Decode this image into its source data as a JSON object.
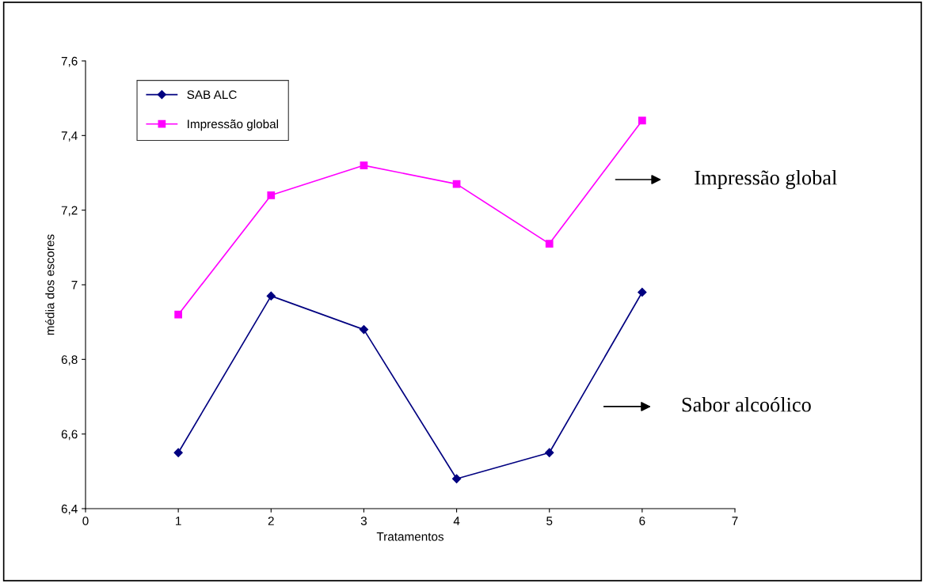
{
  "chart_data": {
    "type": "line",
    "xlabel": "Tratamentos",
    "ylabel": "média dos escores",
    "x": [
      1,
      2,
      3,
      4,
      5,
      6
    ],
    "series": [
      {
        "name": "SAB ALC",
        "color": "#000080",
        "marker": "diamond",
        "values": [
          6.55,
          6.97,
          6.88,
          6.48,
          6.55,
          6.98
        ]
      },
      {
        "name": "Impressão global",
        "color": "#ff00ff",
        "marker": "square",
        "values": [
          6.92,
          7.24,
          7.32,
          7.27,
          7.11,
          7.44
        ]
      }
    ],
    "xlim": [
      0,
      7
    ],
    "xticks": [
      0,
      1,
      2,
      3,
      4,
      5,
      6,
      7
    ],
    "ylim": [
      6.4,
      7.6
    ],
    "yticks": [
      {
        "value": 6.4,
        "label": "6,4"
      },
      {
        "value": 6.6,
        "label": "6,6"
      },
      {
        "value": 6.8,
        "label": "6,8"
      },
      {
        "value": 7,
        "label": "7"
      },
      {
        "value": 7.2,
        "label": "7,2"
      },
      {
        "value": 7.4,
        "label": "7,4"
      },
      {
        "value": 7.6,
        "label": "7,6"
      }
    ],
    "grid": false,
    "legend": "top left",
    "line_style": "solid",
    "annotations": [
      "Impressão global",
      "Sabor alcoólico"
    ]
  }
}
